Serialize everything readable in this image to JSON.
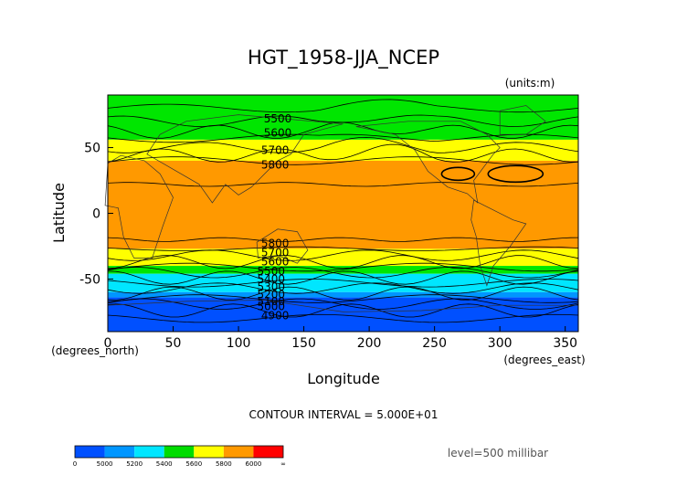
{
  "chart_data": {
    "type": "heatmap",
    "title": "HGT_1958-JJA_NCEP",
    "units_label": "(units:m)",
    "xlabel": "Longitude",
    "ylabel": "Latitude",
    "x_unit_label": "(degrees_east)",
    "y_unit_label": "(degrees_north)",
    "xlim": [
      0,
      360
    ],
    "ylim": [
      -90,
      90
    ],
    "x_ticks": [
      "0",
      "50",
      "100",
      "150",
      "200",
      "250",
      "300",
      "350"
    ],
    "x_tick_values": [
      0,
      50,
      100,
      150,
      200,
      250,
      300,
      350
    ],
    "y_ticks": [
      "50",
      "0",
      "-50"
    ],
    "y_tick_values": [
      50,
      0,
      -50
    ],
    "contour_interval_text": "CONTOUR INTERVAL = 5.000E+01",
    "level_text": "level=500 millibar",
    "contour_labels": [
      {
        "text": "5500",
        "lon": 130,
        "lat": 72
      },
      {
        "text": "5600",
        "lon": 130,
        "lat": 61
      },
      {
        "text": "5700",
        "lon": 128,
        "lat": 48
      },
      {
        "text": "5800",
        "lon": 128,
        "lat": 37
      },
      {
        "text": "5800",
        "lon": 128,
        "lat": -23
      },
      {
        "text": "5700",
        "lon": 128,
        "lat": -30
      },
      {
        "text": "5600",
        "lon": 128,
        "lat": -37
      },
      {
        "text": "5500",
        "lon": 125,
        "lat": -44
      },
      {
        "text": "5400",
        "lon": 125,
        "lat": -50
      },
      {
        "text": "5300",
        "lon": 125,
        "lat": -56
      },
      {
        "text": "5200",
        "lon": 125,
        "lat": -62
      },
      {
        "text": "5100",
        "lon": 125,
        "lat": -67
      },
      {
        "text": "5000",
        "lon": 125,
        "lat": -71
      },
      {
        "text": "4900",
        "lon": 128,
        "lat": -78
      }
    ],
    "colorbar": {
      "labels": [
        "0",
        "5000",
        "5200",
        "5400",
        "5600",
        "5800",
        "6000",
        "∞"
      ],
      "colors": [
        "#0050ff",
        "#0096ff",
        "#00e6ff",
        "#00dc00",
        "#ffff00",
        "#ff9900",
        "#ff0000"
      ]
    },
    "color_bands": [
      {
        "lat_top": 90,
        "lat_bottom": 56,
        "color": "#00e600"
      },
      {
        "lat_top": 56,
        "lat_bottom": 40,
        "color": "#ffff00"
      },
      {
        "lat_top": 40,
        "lat_bottom": -27,
        "color": "#ff9900"
      },
      {
        "lat_top": -27,
        "lat_bottom": -40,
        "color": "#ffff00"
      },
      {
        "lat_top": -40,
        "lat_bottom": -46,
        "color": "#00e600"
      },
      {
        "lat_top": -46,
        "lat_bottom": -60,
        "color": "#00e6ff"
      },
      {
        "lat_top": -60,
        "lat_bottom": -64,
        "color": "#0096ff"
      },
      {
        "lat_top": -64,
        "lat_bottom": -90,
        "color": "#0050ff"
      }
    ]
  }
}
